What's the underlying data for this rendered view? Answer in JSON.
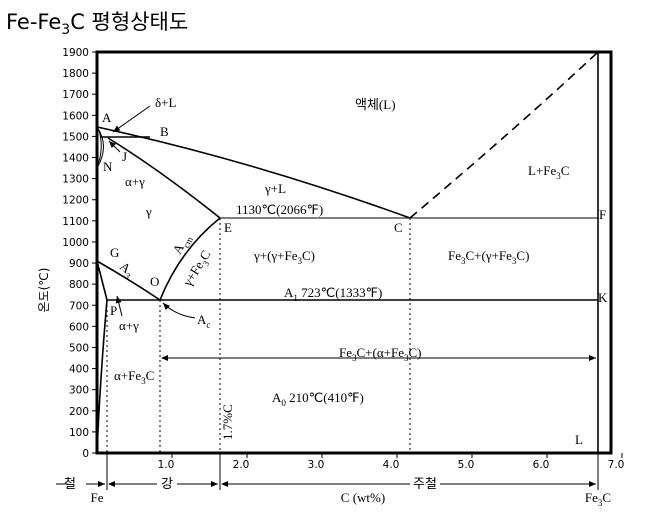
{
  "title": [
    "Fe-Fe",
    "3",
    "C  평형상태도"
  ],
  "y_axis": {
    "label": "온도(℃)",
    "ticks": [
      0,
      100,
      200,
      300,
      400,
      500,
      600,
      700,
      800,
      900,
      1000,
      1100,
      1200,
      1300,
      1400,
      1500,
      1600,
      1700,
      1800,
      1900
    ]
  },
  "x_axis": {
    "label": "C (wt%)",
    "ticks": [
      {
        "value": 1,
        "label": "1.0"
      },
      {
        "value": 2,
        "label": "2.0"
      },
      {
        "value": 3,
        "label": "3.0"
      },
      {
        "value": 4,
        "label": "4.0"
      },
      {
        "value": 5,
        "label": "5.0"
      },
      {
        "value": 6,
        "label": "6.0"
      },
      {
        "value": 7,
        "label": "7.0"
      }
    ],
    "left_end": "Fe",
    "right_end": [
      "Fe",
      "3",
      "C"
    ]
  },
  "regions": [
    "철",
    "강",
    "주철"
  ],
  "points": [
    "A",
    "B",
    "N",
    "J",
    "G",
    "P",
    "O",
    "E",
    "C",
    "F",
    "K",
    "L"
  ],
  "labels": [
    [
      "δ+L"
    ],
    [
      "액체(L)"
    ],
    [
      "α+γ"
    ],
    [
      "γ"
    ],
    [
      "γ+L"
    ],
    [
      "1130℃(2066℉)"
    ],
    [
      "L+Fe",
      "3",
      "C"
    ],
    [
      "A",
      "cm"
    ],
    [
      "γ+Fe",
      "3",
      "C"
    ],
    [
      "A",
      "3"
    ],
    [
      "γ+(γ+Fe",
      "3",
      "C)"
    ],
    [
      "Fe",
      "3",
      "C+(γ+Fe",
      "3",
      "C)"
    ],
    [
      "A",
      "1",
      " 723℃(1333℉)"
    ],
    [
      "A",
      "c"
    ],
    [
      "α+γ"
    ],
    [
      "Fe",
      "3",
      "C+(α+Fe",
      "3",
      "C)"
    ],
    [
      "α+Fe",
      "3",
      "C"
    ],
    [
      "A",
      "0",
      " 210℃(410℉)"
    ],
    [
      "1.7%C"
    ]
  ]
}
